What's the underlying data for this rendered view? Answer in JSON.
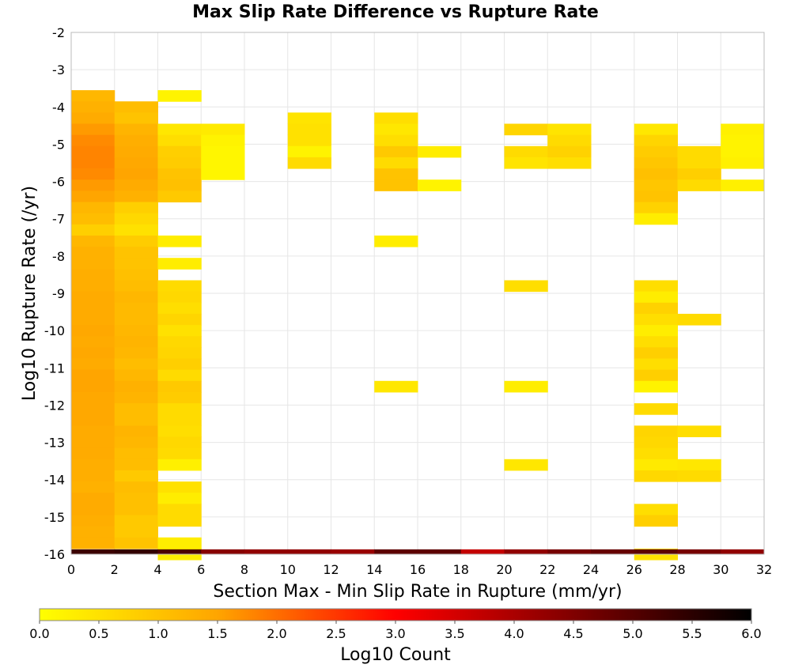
{
  "chart_data": {
    "type": "heatmap",
    "title": "Max Slip Rate Difference vs Rupture Rate",
    "xlabel": "Section Max - Min Slip Rate in Rupture (mm/yr)",
    "ylabel": "Log10 Rupture Rate (/yr)",
    "xlim": [
      0,
      32
    ],
    "ylim": [
      -16,
      -2
    ],
    "x_ticks": [
      0,
      2,
      4,
      6,
      8,
      10,
      12,
      14,
      16,
      18,
      20,
      22,
      24,
      26,
      28,
      30,
      32
    ],
    "y_ticks": [
      -2,
      -3,
      -4,
      -5,
      -6,
      -7,
      -8,
      -9,
      -10,
      -11,
      -12,
      -13,
      -14,
      -15,
      -16
    ],
    "grid": true,
    "bin_width_x": 2,
    "bin_height_y": 0.3,
    "colorbar": {
      "label": "Log10 Count",
      "range": [
        0.0,
        6.0
      ],
      "ticks": [
        "0.0",
        "0.5",
        "1.0",
        "1.5",
        "2.0",
        "2.5",
        "3.0",
        "3.5",
        "4.0",
        "4.5",
        "5.0",
        "5.5",
        "6.0"
      ],
      "colormap": [
        "#ffff00",
        "#ffa500",
        "#ff0000",
        "#000000"
      ]
    },
    "cells": [
      {
        "x": 0,
        "y": -3.7,
        "v": 1.2
      },
      {
        "x": 0,
        "y": -4.0,
        "v": 1.3
      },
      {
        "x": 0,
        "y": -4.3,
        "v": 1.4
      },
      {
        "x": 0,
        "y": -4.6,
        "v": 1.6
      },
      {
        "x": 0,
        "y": -4.9,
        "v": 1.75
      },
      {
        "x": 0,
        "y": -5.2,
        "v": 1.8
      },
      {
        "x": 0,
        "y": -5.5,
        "v": 1.8
      },
      {
        "x": 0,
        "y": -5.8,
        "v": 1.75
      },
      {
        "x": 0,
        "y": -6.1,
        "v": 1.6
      },
      {
        "x": 0,
        "y": -6.4,
        "v": 1.5
      },
      {
        "x": 0,
        "y": -6.7,
        "v": 1.2
      },
      {
        "x": 0,
        "y": -7.0,
        "v": 1.1
      },
      {
        "x": 0,
        "y": -7.3,
        "v": 0.8
      },
      {
        "x": 0,
        "y": -7.6,
        "v": 1.2
      },
      {
        "x": 0,
        "y": -7.9,
        "v": 1.3
      },
      {
        "x": 0,
        "y": -8.2,
        "v": 1.3
      },
      {
        "x": 0,
        "y": -8.5,
        "v": 1.35
      },
      {
        "x": 0,
        "y": -8.8,
        "v": 1.35
      },
      {
        "x": 0,
        "y": -9.1,
        "v": 1.4
      },
      {
        "x": 0,
        "y": -9.4,
        "v": 1.4
      },
      {
        "x": 0,
        "y": -9.7,
        "v": 1.4
      },
      {
        "x": 0,
        "y": -10.0,
        "v": 1.45
      },
      {
        "x": 0,
        "y": -10.3,
        "v": 1.4
      },
      {
        "x": 0,
        "y": -10.6,
        "v": 1.45
      },
      {
        "x": 0,
        "y": -10.9,
        "v": 1.4
      },
      {
        "x": 0,
        "y": -11.2,
        "v": 1.5
      },
      {
        "x": 0,
        "y": -11.5,
        "v": 1.5
      },
      {
        "x": 0,
        "y": -11.8,
        "v": 1.45
      },
      {
        "x": 0,
        "y": -12.1,
        "v": 1.45
      },
      {
        "x": 0,
        "y": -12.4,
        "v": 1.45
      },
      {
        "x": 0,
        "y": -12.7,
        "v": 1.4
      },
      {
        "x": 0,
        "y": -13.0,
        "v": 1.4
      },
      {
        "x": 0,
        "y": -13.3,
        "v": 1.4
      },
      {
        "x": 0,
        "y": -13.6,
        "v": 1.35
      },
      {
        "x": 0,
        "y": -13.9,
        "v": 1.35
      },
      {
        "x": 0,
        "y": -14.2,
        "v": 1.3
      },
      {
        "x": 0,
        "y": -14.5,
        "v": 1.4
      },
      {
        "x": 0,
        "y": -14.8,
        "v": 1.4
      },
      {
        "x": 0,
        "y": -15.1,
        "v": 1.35
      },
      {
        "x": 0,
        "y": -15.4,
        "v": 1.3
      },
      {
        "x": 0,
        "y": -15.7,
        "v": 1.3
      },
      {
        "x": 2,
        "y": -4.0,
        "v": 1.1
      },
      {
        "x": 2,
        "y": -4.3,
        "v": 1.0
      },
      {
        "x": 2,
        "y": -4.6,
        "v": 1.25
      },
      {
        "x": 2,
        "y": -4.9,
        "v": 1.35
      },
      {
        "x": 2,
        "y": -5.2,
        "v": 1.4
      },
      {
        "x": 2,
        "y": -5.5,
        "v": 1.45
      },
      {
        "x": 2,
        "y": -5.8,
        "v": 1.5
      },
      {
        "x": 2,
        "y": -6.1,
        "v": 1.4
      },
      {
        "x": 2,
        "y": -6.4,
        "v": 1.3
      },
      {
        "x": 2,
        "y": -6.7,
        "v": 0.8
      },
      {
        "x": 2,
        "y": -7.0,
        "v": 0.65
      },
      {
        "x": 2,
        "y": -7.3,
        "v": 0.5
      },
      {
        "x": 2,
        "y": -7.6,
        "v": 0.85
      },
      {
        "x": 2,
        "y": -7.9,
        "v": 1.0
      },
      {
        "x": 2,
        "y": -8.2,
        "v": 1.0
      },
      {
        "x": 2,
        "y": -8.5,
        "v": 1.05
      },
      {
        "x": 2,
        "y": -8.8,
        "v": 1.1
      },
      {
        "x": 2,
        "y": -9.1,
        "v": 1.2
      },
      {
        "x": 2,
        "y": -9.4,
        "v": 1.15
      },
      {
        "x": 2,
        "y": -9.7,
        "v": 1.15
      },
      {
        "x": 2,
        "y": -10.0,
        "v": 1.2
      },
      {
        "x": 2,
        "y": -10.3,
        "v": 1.25
      },
      {
        "x": 2,
        "y": -10.6,
        "v": 1.2
      },
      {
        "x": 2,
        "y": -10.9,
        "v": 1.1
      },
      {
        "x": 2,
        "y": -11.2,
        "v": 1.2
      },
      {
        "x": 2,
        "y": -11.5,
        "v": 1.3
      },
      {
        "x": 2,
        "y": -11.8,
        "v": 1.25
      },
      {
        "x": 2,
        "y": -12.1,
        "v": 1.1
      },
      {
        "x": 2,
        "y": -12.4,
        "v": 1.1
      },
      {
        "x": 2,
        "y": -12.7,
        "v": 1.25
      },
      {
        "x": 2,
        "y": -13.0,
        "v": 1.2
      },
      {
        "x": 2,
        "y": -13.3,
        "v": 1.1
      },
      {
        "x": 2,
        "y": -13.6,
        "v": 1.1
      },
      {
        "x": 2,
        "y": -13.9,
        "v": 0.9
      },
      {
        "x": 2,
        "y": -14.2,
        "v": 1.1
      },
      {
        "x": 2,
        "y": -14.5,
        "v": 1.05
      },
      {
        "x": 2,
        "y": -14.8,
        "v": 1.05
      },
      {
        "x": 2,
        "y": -15.1,
        "v": 0.9
      },
      {
        "x": 2,
        "y": -15.4,
        "v": 0.9
      },
      {
        "x": 2,
        "y": -15.7,
        "v": 1.0
      },
      {
        "x": 4,
        "y": -3.7,
        "v": 0.2
      },
      {
        "x": 4,
        "y": -4.6,
        "v": 0.4
      },
      {
        "x": 4,
        "y": -4.9,
        "v": 0.55
      },
      {
        "x": 4,
        "y": -5.2,
        "v": 0.8
      },
      {
        "x": 4,
        "y": -5.5,
        "v": 0.85
      },
      {
        "x": 4,
        "y": -5.8,
        "v": 1.0
      },
      {
        "x": 4,
        "y": -6.1,
        "v": 1.05
      },
      {
        "x": 4,
        "y": -6.4,
        "v": 0.9
      },
      {
        "x": 4,
        "y": -7.6,
        "v": 0.3
      },
      {
        "x": 4,
        "y": -8.2,
        "v": 0.3
      },
      {
        "x": 4,
        "y": -8.8,
        "v": 0.6
      },
      {
        "x": 4,
        "y": -9.1,
        "v": 0.65
      },
      {
        "x": 4,
        "y": -9.4,
        "v": 0.55
      },
      {
        "x": 4,
        "y": -9.7,
        "v": 0.7
      },
      {
        "x": 4,
        "y": -10.0,
        "v": 0.5
      },
      {
        "x": 4,
        "y": -10.3,
        "v": 0.65
      },
      {
        "x": 4,
        "y": -10.6,
        "v": 0.7
      },
      {
        "x": 4,
        "y": -10.9,
        "v": 0.8
      },
      {
        "x": 4,
        "y": -11.2,
        "v": 0.6
      },
      {
        "x": 4,
        "y": -11.5,
        "v": 0.9
      },
      {
        "x": 4,
        "y": -11.8,
        "v": 0.85
      },
      {
        "x": 4,
        "y": -12.1,
        "v": 0.6
      },
      {
        "x": 4,
        "y": -12.4,
        "v": 0.6
      },
      {
        "x": 4,
        "y": -12.7,
        "v": 0.55
      },
      {
        "x": 4,
        "y": -13.0,
        "v": 0.65
      },
      {
        "x": 4,
        "y": -13.3,
        "v": 0.6
      },
      {
        "x": 4,
        "y": -13.6,
        "v": 0.25
      },
      {
        "x": 4,
        "y": -14.2,
        "v": 0.5
      },
      {
        "x": 4,
        "y": -14.5,
        "v": 0.3
      },
      {
        "x": 4,
        "y": -14.8,
        "v": 0.6
      },
      {
        "x": 4,
        "y": -15.1,
        "v": 0.6
      },
      {
        "x": 4,
        "y": -15.7,
        "v": 0.3
      },
      {
        "x": 4,
        "y": -16.0,
        "v": 0.3
      },
      {
        "x": 6,
        "y": -4.6,
        "v": 0.35
      },
      {
        "x": 6,
        "y": -4.9,
        "v": 0.2
      },
      {
        "x": 6,
        "y": -5.2,
        "v": 0.15
      },
      {
        "x": 6,
        "y": -5.5,
        "v": 0.15
      },
      {
        "x": 6,
        "y": -5.8,
        "v": 0.15
      },
      {
        "x": 10,
        "y": -4.3,
        "v": 0.45
      },
      {
        "x": 10,
        "y": -4.6,
        "v": 0.5
      },
      {
        "x": 10,
        "y": -4.9,
        "v": 0.5
      },
      {
        "x": 10,
        "y": -5.2,
        "v": 0.2
      },
      {
        "x": 10,
        "y": -5.5,
        "v": 0.6
      },
      {
        "x": 14,
        "y": -4.3,
        "v": 0.55
      },
      {
        "x": 14,
        "y": -4.6,
        "v": 0.4
      },
      {
        "x": 14,
        "y": -4.9,
        "v": 0.55
      },
      {
        "x": 14,
        "y": -5.2,
        "v": 0.9
      },
      {
        "x": 14,
        "y": -5.5,
        "v": 0.6
      },
      {
        "x": 14,
        "y": -5.8,
        "v": 1.0
      },
      {
        "x": 14,
        "y": -6.1,
        "v": 1.0
      },
      {
        "x": 14,
        "y": -7.6,
        "v": 0.3
      },
      {
        "x": 14,
        "y": -11.5,
        "v": 0.4
      },
      {
        "x": 16,
        "y": -5.2,
        "v": 0.3
      },
      {
        "x": 16,
        "y": -6.1,
        "v": 0.2
      },
      {
        "x": 20,
        "y": -4.6,
        "v": 0.7
      },
      {
        "x": 20,
        "y": -5.2,
        "v": 0.6
      },
      {
        "x": 20,
        "y": -5.5,
        "v": 0.45
      },
      {
        "x": 20,
        "y": -8.8,
        "v": 0.55
      },
      {
        "x": 20,
        "y": -11.5,
        "v": 0.3
      },
      {
        "x": 20,
        "y": -13.6,
        "v": 0.4
      },
      {
        "x": 22,
        "y": -4.6,
        "v": 0.45
      },
      {
        "x": 22,
        "y": -4.9,
        "v": 0.6
      },
      {
        "x": 22,
        "y": -5.2,
        "v": 0.75
      },
      {
        "x": 22,
        "y": -5.5,
        "v": 0.55
      },
      {
        "x": 26,
        "y": -4.6,
        "v": 0.4
      },
      {
        "x": 26,
        "y": -4.9,
        "v": 0.7
      },
      {
        "x": 26,
        "y": -5.2,
        "v": 0.85
      },
      {
        "x": 26,
        "y": -5.5,
        "v": 0.95
      },
      {
        "x": 26,
        "y": -5.8,
        "v": 1.05
      },
      {
        "x": 26,
        "y": -6.1,
        "v": 0.95
      },
      {
        "x": 26,
        "y": -6.4,
        "v": 1.0
      },
      {
        "x": 26,
        "y": -6.7,
        "v": 0.75
      },
      {
        "x": 26,
        "y": -7.0,
        "v": 0.3
      },
      {
        "x": 26,
        "y": -8.8,
        "v": 0.55
      },
      {
        "x": 26,
        "y": -9.1,
        "v": 0.3
      },
      {
        "x": 26,
        "y": -9.4,
        "v": 0.75
      },
      {
        "x": 26,
        "y": -9.7,
        "v": 0.55
      },
      {
        "x": 26,
        "y": -10.0,
        "v": 0.3
      },
      {
        "x": 26,
        "y": -10.3,
        "v": 0.55
      },
      {
        "x": 26,
        "y": -10.6,
        "v": 0.8
      },
      {
        "x": 26,
        "y": -10.9,
        "v": 0.55
      },
      {
        "x": 26,
        "y": -11.2,
        "v": 0.8
      },
      {
        "x": 26,
        "y": -11.5,
        "v": 0.2
      },
      {
        "x": 26,
        "y": -12.1,
        "v": 0.6
      },
      {
        "x": 26,
        "y": -12.7,
        "v": 0.7
      },
      {
        "x": 26,
        "y": -13.0,
        "v": 0.65
      },
      {
        "x": 26,
        "y": -13.3,
        "v": 0.55
      },
      {
        "x": 26,
        "y": -13.6,
        "v": 0.35
      },
      {
        "x": 26,
        "y": -13.9,
        "v": 0.65
      },
      {
        "x": 26,
        "y": -14.8,
        "v": 0.55
      },
      {
        "x": 26,
        "y": -15.1,
        "v": 0.8
      },
      {
        "x": 26,
        "y": -16.0,
        "v": 0.5
      },
      {
        "x": 28,
        "y": -5.2,
        "v": 0.6
      },
      {
        "x": 28,
        "y": -5.5,
        "v": 0.6
      },
      {
        "x": 28,
        "y": -5.8,
        "v": 0.8
      },
      {
        "x": 28,
        "y": -6.1,
        "v": 0.6
      },
      {
        "x": 28,
        "y": -9.7,
        "v": 0.6
      },
      {
        "x": 28,
        "y": -12.7,
        "v": 0.55
      },
      {
        "x": 28,
        "y": -13.6,
        "v": 0.4
      },
      {
        "x": 28,
        "y": -13.9,
        "v": 0.6
      },
      {
        "x": 30,
        "y": -4.6,
        "v": 0.25
      },
      {
        "x": 30,
        "y": -4.9,
        "v": 0.2
      },
      {
        "x": 30,
        "y": -5.2,
        "v": 0.2
      },
      {
        "x": 30,
        "y": -5.5,
        "v": 0.25
      },
      {
        "x": 30,
        "y": -6.1,
        "v": 0.25
      }
    ],
    "bottom_row": {
      "y_bottom": -16,
      "values": [
        5.3,
        5.4,
        5.1,
        4.4,
        4.3,
        4.3,
        4.2,
        4.9,
        4.9,
        3.7,
        4.3,
        4.6,
        4.8,
        4.9,
        4.6,
        4.3
      ]
    }
  }
}
